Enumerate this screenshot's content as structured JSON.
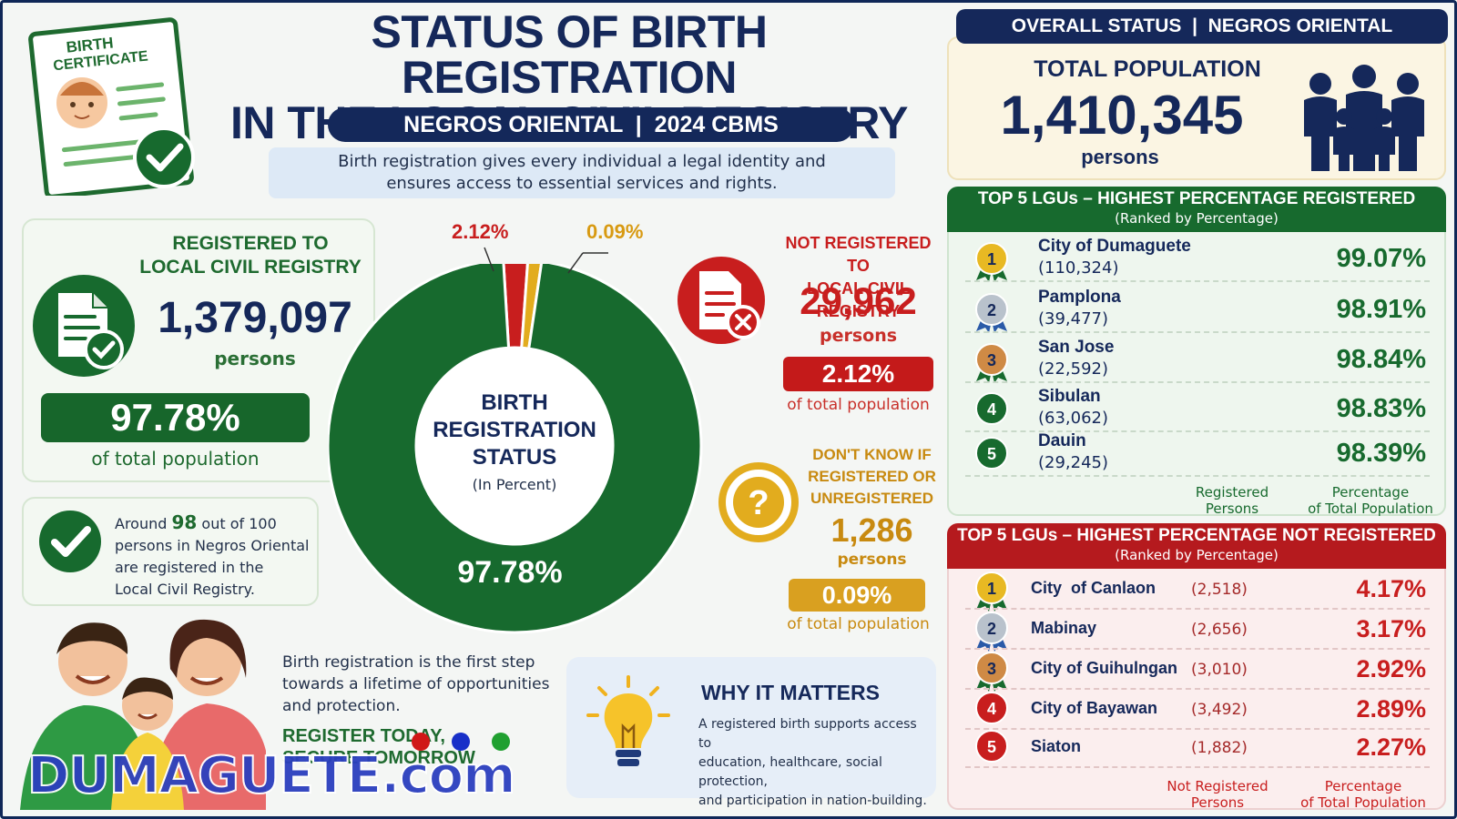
{
  "header": {
    "title_line1": "STATUS OF BIRTH REGISTRATION",
    "title_line2": "IN THE LOCAL CIVIL REGISTRY",
    "subtitle": "NEGROS ORIENTAL  |  2024 CBMS",
    "intro_line1": "Birth registration gives every individual a legal identity and",
    "intro_line2": "ensures access to essential services and rights.",
    "certificate_label_1": "BIRTH",
    "certificate_label_2": "CERTIFICATE"
  },
  "registered": {
    "title_1": "REGISTERED TO",
    "title_2": "LOCAL CIVIL REGISTRY",
    "count": "1,379,097",
    "unit": "persons",
    "percent": "97.78%",
    "percent_note": "of total population"
  },
  "note": {
    "pre": "Around ",
    "number": "98",
    "post": " out of 100",
    "line2": "persons in Negros Oriental",
    "line3": "are registered in the",
    "line4": "Local Civil Registry."
  },
  "not_registered": {
    "title_1": "NOT REGISTERED TO",
    "title_2": "LOCAL CIVIL REGISTRY",
    "count": "29,962",
    "unit": "persons",
    "percent": "2.12%",
    "percent_note": "of total population"
  },
  "dont_know": {
    "title_1": "DON'T KNOW IF",
    "title_2": "REGISTERED OR",
    "title_3": "UNREGISTERED",
    "count": "1,286",
    "unit": "persons",
    "percent": "0.09%",
    "percent_note": "of total population"
  },
  "overall": {
    "pill": "OVERALL STATUS  |  NEGROS ORIENTAL",
    "label": "TOTAL POPULATION",
    "count": "1,410,345",
    "unit": "persons"
  },
  "top_registered": {
    "title": "TOP 5 LGUs – HIGHEST PERCENTAGE REGISTERED",
    "subtitle": "(Ranked by Percentage)",
    "rows": [
      {
        "rank": "1",
        "name": "City of Dumaguete",
        "count": "(110,324)",
        "pct": "99.07%"
      },
      {
        "rank": "2",
        "name": "Pamplona",
        "count": "(39,477)",
        "pct": "98.91%"
      },
      {
        "rank": "3",
        "name": "San Jose",
        "count": "(22,592)",
        "pct": "98.84%"
      },
      {
        "rank": "4",
        "name": "Sibulan",
        "count": "(63,062)",
        "pct": "98.83%"
      },
      {
        "rank": "5",
        "name": "Dauin",
        "count": "(29,245)",
        "pct": "98.39%"
      }
    ],
    "foot_col1_1": "Registered",
    "foot_col1_2": "Persons",
    "foot_col2_1": "Percentage",
    "foot_col2_2": "of Total Population"
  },
  "top_not_registered": {
    "title": "TOP 5 LGUs – HIGHEST PERCENTAGE NOT REGISTERED",
    "subtitle": "(Ranked by Percentage)",
    "rows": [
      {
        "rank": "1",
        "name": "City  of Canlaon",
        "count": "(2,518)",
        "pct": "4.17%"
      },
      {
        "rank": "2",
        "name": "Mabinay",
        "count": "(2,656)",
        "pct": "3.17%"
      },
      {
        "rank": "3",
        "name": "City of Guihulngan",
        "count": "(3,010)",
        "pct": "2.92%"
      },
      {
        "rank": "4",
        "name": "City of Bayawan",
        "count": "(3,492)",
        "pct": "2.89%"
      },
      {
        "rank": "5",
        "name": "Siaton",
        "count": "(1,882)",
        "pct": "2.27%"
      }
    ],
    "foot_col1_1": "Not Registered",
    "foot_col1_2": "Persons",
    "foot_col2_1": "Percentage",
    "foot_col2_2": "of Total Population"
  },
  "bottom": {
    "text_1": "Birth registration is the first step",
    "text_2": "towards a lifetime of opportunities",
    "text_3": "and protection.",
    "cta": "REGISTER TODAY,",
    "cta_2": "SECURE TOMORROW",
    "watermark": "DUMAGUETE.com"
  },
  "why": {
    "title": "WHY IT MATTERS",
    "line1": "A registered birth supports access to",
    "line2": "education, healthcare, social protection,",
    "line3": "and participation in nation-building."
  },
  "colors": {
    "registered": "#176a2e",
    "not_registered": "#c81e1e",
    "dont_know": "#e2ac1e",
    "navy": "#15285a"
  },
  "chart_data": {
    "type": "pie",
    "title": "BIRTH REGISTRATION STATUS",
    "subtitle": "(In Percent)",
    "categories": [
      "Registered",
      "Not Registered",
      "Don't Know"
    ],
    "values": [
      97.78,
      2.12,
      0.09
    ],
    "labels": [
      "97.78%",
      "2.12%",
      "0.09%"
    ]
  }
}
